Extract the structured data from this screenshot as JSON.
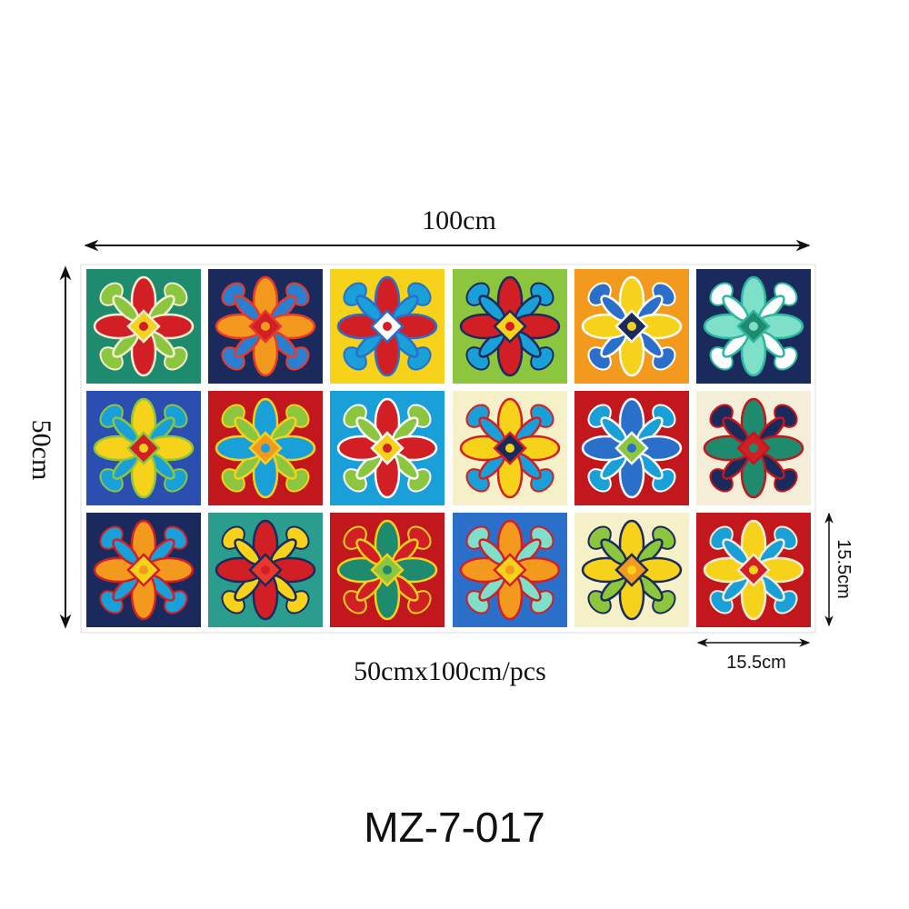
{
  "dimensions": {
    "width": "100cm",
    "height": "50cm",
    "tile_height": "15.5cm",
    "tile_width": "15.5cm",
    "size_note": "50cmx100cm/pcs"
  },
  "model": "MZ-7-017"
}
